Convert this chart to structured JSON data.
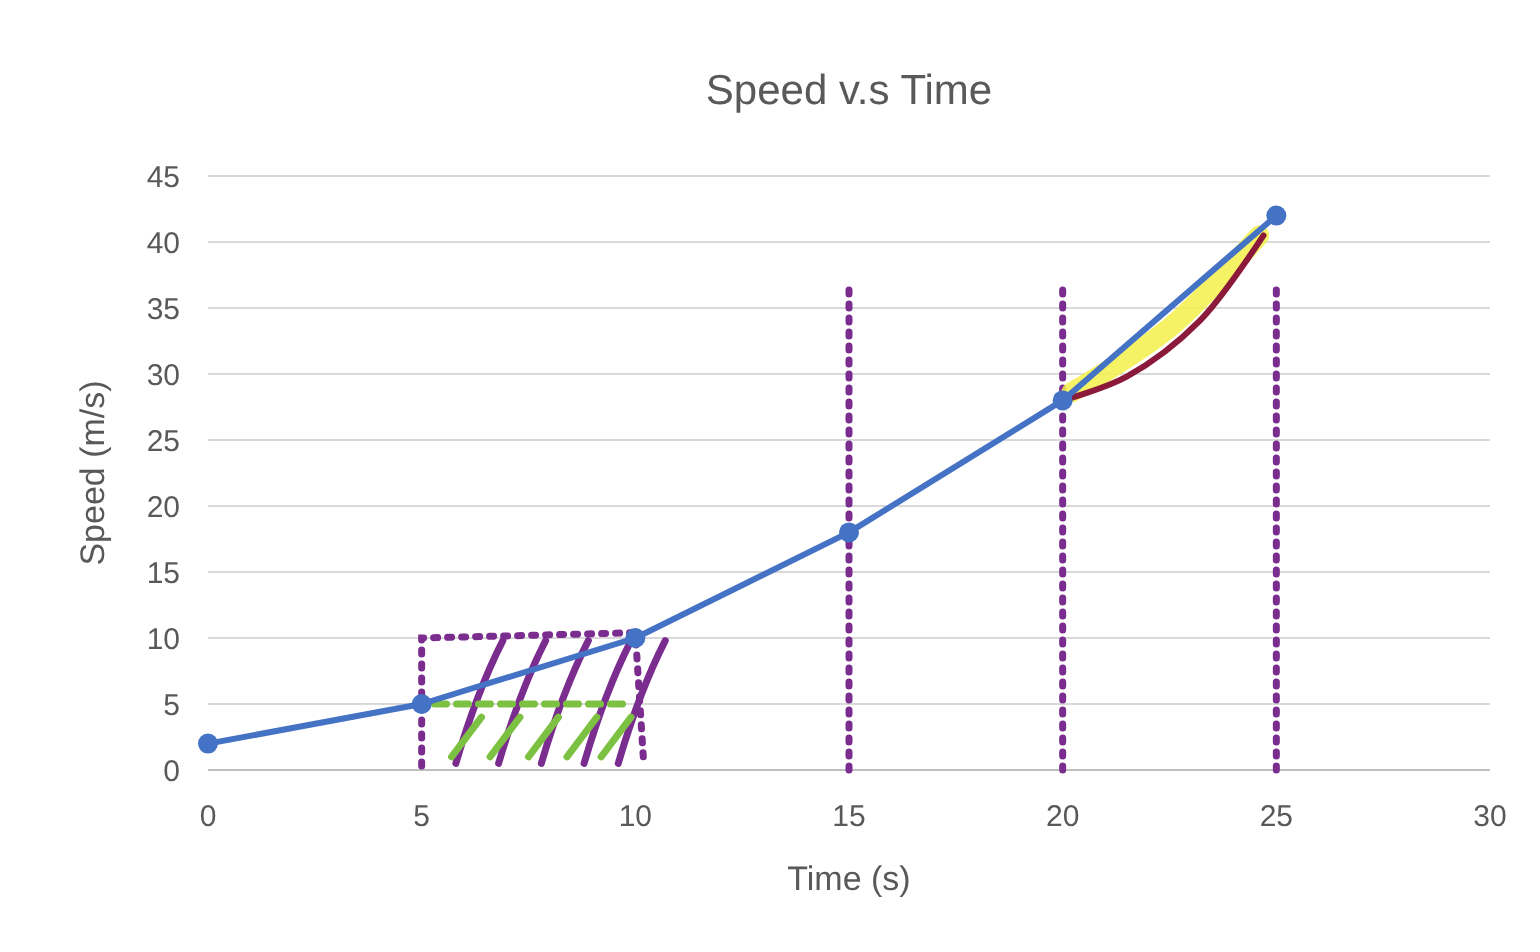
{
  "chart_data": {
    "type": "line",
    "title": "Speed v.s Time",
    "xlabel": "Time (s)",
    "ylabel": "Speed (m/s)",
    "x": [
      0,
      5,
      10,
      15,
      20,
      25
    ],
    "series": [
      {
        "color": "#4472c4",
        "values": [
          2,
          5,
          10,
          18,
          28,
          42
        ]
      }
    ],
    "xlim": [
      0,
      30
    ],
    "xticks": [
      0,
      5,
      10,
      15,
      20,
      25,
      30
    ],
    "ylim": [
      0,
      45
    ],
    "yticks": [
      0,
      5,
      10,
      15,
      20,
      25,
      30,
      35,
      40,
      45
    ],
    "grid": "y",
    "marker": "circle",
    "line_style": "solid",
    "ref_lines": [
      {
        "axis": "x",
        "value": 15,
        "color": "#7b2c8f",
        "line_style": "dotted"
      },
      {
        "axis": "x",
        "value": 20,
        "color": "#7b2c8f",
        "line_style": "dotted"
      },
      {
        "axis": "x",
        "value": 25,
        "color": "#7b2c8f",
        "line_style": "dotted"
      }
    ]
  }
}
